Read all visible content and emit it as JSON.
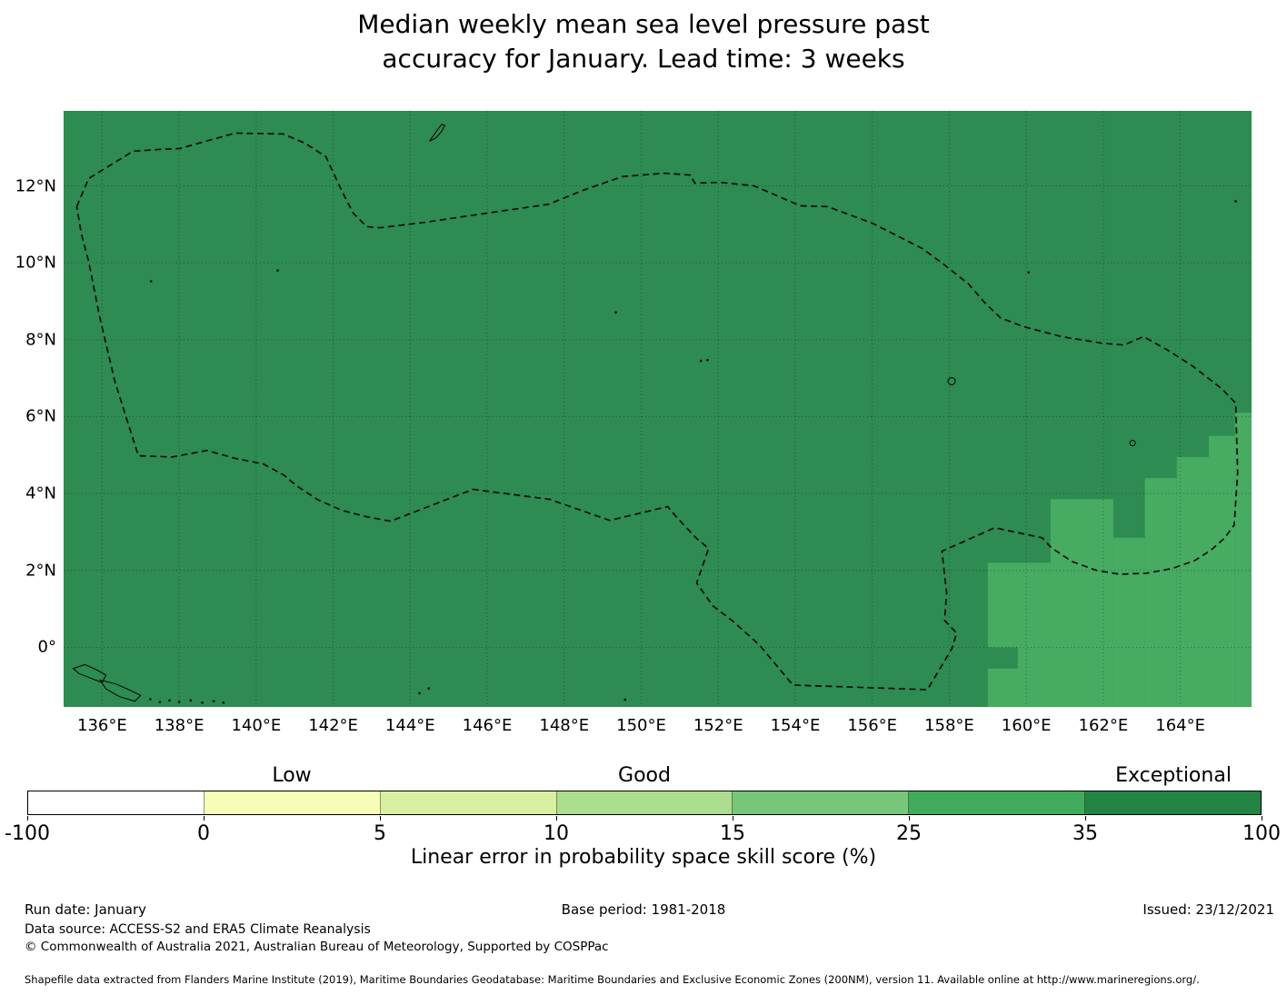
{
  "title": {
    "line1": "Median weekly mean sea level pressure past",
    "line2": "accuracy for January. Lead time: 3 weeks"
  },
  "chart_data": {
    "type": "heatmap",
    "title": "Median weekly mean sea level pressure past accuracy for January. Lead time: 3 weeks",
    "variable": "Linear error in probability space skill score (%)",
    "map_extent": {
      "lon_min": 135.0,
      "lon_max": 165.85,
      "lat_min": -1.55,
      "lat_max": 13.95
    },
    "grid": true,
    "x_ticks": [
      {
        "lon": 136,
        "label": "136°E"
      },
      {
        "lon": 138,
        "label": "138°E"
      },
      {
        "lon": 140,
        "label": "140°E"
      },
      {
        "lon": 142,
        "label": "142°E"
      },
      {
        "lon": 144,
        "label": "144°E"
      },
      {
        "lon": 146,
        "label": "146°E"
      },
      {
        "lon": 148,
        "label": "148°E"
      },
      {
        "lon": 150,
        "label": "150°E"
      },
      {
        "lon": 152,
        "label": "152°E"
      },
      {
        "lon": 154,
        "label": "154°E"
      },
      {
        "lon": 156,
        "label": "156°E"
      },
      {
        "lon": 158,
        "label": "158°E"
      },
      {
        "lon": 160,
        "label": "160°E"
      },
      {
        "lon": 162,
        "label": "162°E"
      },
      {
        "lon": 164,
        "label": "164°E"
      }
    ],
    "y_ticks": [
      {
        "lat": 12,
        "label": "12°N"
      },
      {
        "lat": 10,
        "label": "10°N"
      },
      {
        "lat": 8,
        "label": "8°N"
      },
      {
        "lat": 6,
        "label": "6°N"
      },
      {
        "lat": 4,
        "label": "4°N"
      },
      {
        "lat": 2,
        "label": "2°N"
      },
      {
        "lat": 0,
        "label": "0°"
      }
    ],
    "base_bin": "35-100",
    "base_color": "#2e8b51",
    "highlight_bin": "25-35",
    "highlight_color": "#47ab62",
    "grid_color": "rgba(0,0,0,0.38)",
    "boundary_color": "#0d0d0d",
    "highlight_regions": [
      {
        "lon0": 165.42,
        "lon1": 165.85,
        "lat_top": 6.1
      },
      {
        "lon0": 164.74,
        "lon1": 165.42,
        "lat_top": 5.5
      },
      {
        "lon0": 163.91,
        "lon1": 164.74,
        "lat_top": 4.95
      },
      {
        "lon0": 163.08,
        "lon1": 163.91,
        "lat_top": 4.4
      },
      {
        "lon0": 162.26,
        "lon1": 163.08,
        "lat_top": 2.85
      },
      {
        "lon0": 160.63,
        "lon1": 162.26,
        "lat_top": 3.85
      },
      {
        "lon0": 159.0,
        "lon1": 160.63,
        "lat_top": 2.2
      }
    ],
    "base_patches": [
      {
        "lon0": 159.0,
        "lon1": 159.78,
        "lat0": -0.55,
        "lat1": 0.0
      }
    ],
    "eez_boundary_lonlat": [
      [
        135.34,
        11.46
      ],
      [
        135.65,
        12.19
      ],
      [
        136.8,
        12.9
      ],
      [
        137.53,
        12.95
      ],
      [
        138.01,
        12.97
      ],
      [
        139.45,
        13.37
      ],
      [
        140.7,
        13.35
      ],
      [
        141.27,
        13.11
      ],
      [
        141.81,
        12.76
      ],
      [
        142.23,
        11.86
      ],
      [
        142.52,
        11.29
      ],
      [
        142.87,
        10.94
      ],
      [
        143.2,
        10.91
      ],
      [
        144.38,
        11.05
      ],
      [
        145.99,
        11.29
      ],
      [
        147.59,
        11.52
      ],
      [
        148.56,
        11.91
      ],
      [
        149.51,
        12.24
      ],
      [
        150.59,
        12.33
      ],
      [
        151.28,
        12.28
      ],
      [
        151.39,
        12.07
      ],
      [
        152.06,
        12.09
      ],
      [
        152.93,
        12.0
      ],
      [
        154.13,
        11.48
      ],
      [
        154.84,
        11.46
      ],
      [
        156.0,
        11.03
      ],
      [
        157.3,
        10.37
      ],
      [
        157.84,
        9.97
      ],
      [
        158.5,
        9.45
      ],
      [
        158.95,
        8.93
      ],
      [
        159.33,
        8.57
      ],
      [
        159.92,
        8.34
      ],
      [
        160.91,
        8.08
      ],
      [
        161.95,
        7.91
      ],
      [
        162.54,
        7.86
      ],
      [
        163.04,
        8.08
      ],
      [
        163.65,
        7.74
      ],
      [
        164.31,
        7.32
      ],
      [
        165.07,
        6.73
      ],
      [
        165.44,
        6.35
      ],
      [
        165.49,
        4.55
      ],
      [
        165.4,
        3.18
      ],
      [
        165.14,
        2.83
      ],
      [
        164.81,
        2.54
      ],
      [
        164.38,
        2.26
      ],
      [
        163.79,
        2.05
      ],
      [
        163.15,
        1.93
      ],
      [
        162.44,
        1.9
      ],
      [
        161.83,
        2.0
      ],
      [
        161.19,
        2.23
      ],
      [
        160.65,
        2.59
      ],
      [
        160.41,
        2.85
      ],
      [
        159.18,
        3.11
      ],
      [
        157.81,
        2.5
      ],
      [
        157.93,
        1.41
      ],
      [
        157.88,
        0.7
      ],
      [
        158.19,
        0.37
      ],
      [
        158.07,
        -0.03
      ],
      [
        157.43,
        -1.1
      ],
      [
        153.94,
        -0.98
      ],
      [
        153.07,
        0.06
      ],
      [
        152.38,
        0.68
      ],
      [
        151.86,
        1.08
      ],
      [
        151.44,
        1.67
      ],
      [
        151.75,
        2.57
      ],
      [
        151.44,
        2.83
      ],
      [
        150.92,
        3.38
      ],
      [
        150.69,
        3.66
      ],
      [
        149.18,
        3.3
      ],
      [
        147.62,
        3.85
      ],
      [
        145.63,
        4.11
      ],
      [
        143.49,
        3.28
      ],
      [
        142.85,
        3.4
      ],
      [
        142.23,
        3.56
      ],
      [
        141.6,
        3.84
      ],
      [
        141.05,
        4.2
      ],
      [
        140.72,
        4.48
      ],
      [
        140.18,
        4.77
      ],
      [
        139.47,
        4.91
      ],
      [
        138.72,
        5.12
      ],
      [
        137.82,
        4.95
      ],
      [
        136.94,
        4.98
      ],
      [
        136.33,
        6.92
      ],
      [
        135.93,
        8.62
      ],
      [
        135.65,
        10.04
      ],
      [
        135.46,
        10.75
      ]
    ],
    "island_outlines": [
      [
        [
          144.5,
          13.16
        ],
        [
          144.6,
          13.3
        ],
        [
          144.7,
          13.45
        ],
        [
          144.82,
          13.6
        ],
        [
          144.9,
          13.57
        ],
        [
          144.82,
          13.42
        ],
        [
          144.66,
          13.24
        ]
      ],
      [
        [
          135.25,
          -0.55
        ],
        [
          135.55,
          -0.45
        ],
        [
          135.85,
          -0.58
        ],
        [
          136.1,
          -0.72
        ],
        [
          136.0,
          -0.92
        ],
        [
          135.7,
          -0.8
        ],
        [
          135.4,
          -0.68
        ]
      ],
      [
        [
          135.95,
          -0.85
        ],
        [
          136.35,
          -0.95
        ],
        [
          136.7,
          -1.1
        ],
        [
          137.0,
          -1.25
        ],
        [
          136.85,
          -1.4
        ],
        [
          136.45,
          -1.28
        ],
        [
          136.1,
          -1.08
        ]
      ]
    ],
    "atoll_circles": [
      {
        "lon": 158.06,
        "lat": 6.92,
        "r": 4
      },
      {
        "lon": 162.76,
        "lat": 5.31,
        "r": 3
      }
    ],
    "island_dots": [
      [
        137.27,
        9.52
      ],
      [
        140.56,
        9.8
      ],
      [
        149.34,
        8.71
      ],
      [
        151.55,
        7.45
      ],
      [
        151.72,
        7.47
      ],
      [
        160.06,
        9.75
      ],
      [
        165.44,
        11.6
      ],
      [
        144.24,
        -1.19
      ],
      [
        144.48,
        -1.07
      ],
      [
        149.58,
        -1.36
      ],
      [
        137.25,
        -1.35
      ],
      [
        137.5,
        -1.42
      ],
      [
        137.75,
        -1.38
      ],
      [
        138.0,
        -1.42
      ],
      [
        138.3,
        -1.38
      ],
      [
        138.6,
        -1.44
      ],
      [
        138.9,
        -1.4
      ],
      [
        139.15,
        -1.44
      ]
    ],
    "colorbar": {
      "bounds": [
        -100,
        0,
        5,
        10,
        15,
        25,
        35,
        100
      ],
      "tick_labels": [
        "-100",
        "0",
        "5",
        "10",
        "15",
        "25",
        "35",
        "100"
      ],
      "segment_colors": [
        "#ffffff",
        "#f7fcb9",
        "#d9f0a3",
        "#addd8e",
        "#78c679",
        "#41ab5d",
        "#238443"
      ],
      "category_labels": [
        {
          "label": "Low",
          "segment_index": 1
        },
        {
          "label": "Good",
          "segment_index": 3
        },
        {
          "label": "Exceptional",
          "segment_index": 6
        }
      ],
      "axis_label": "Linear error in probability space skill score (%)"
    }
  },
  "footer": {
    "run_date": "Run date: January",
    "base_period": "Base period: 1981-2018",
    "issued": "Issued: 23/12/2021",
    "data_source": "Data source: ACCESS-S2 and ERA5 Climate Reanalysis",
    "copyright": "© Commonwealth of Australia 2021, Australian Bureau of Meteorology, Supported by COSPPac",
    "shapefile_note": "Shapefile data extracted from Flanders Marine Institute (2019), Maritime Boundaries Geodatabase: Maritime Boundaries and Exclusive Economic Zones (200NM), version 11. Available online at http://www.marineregions.org/."
  }
}
